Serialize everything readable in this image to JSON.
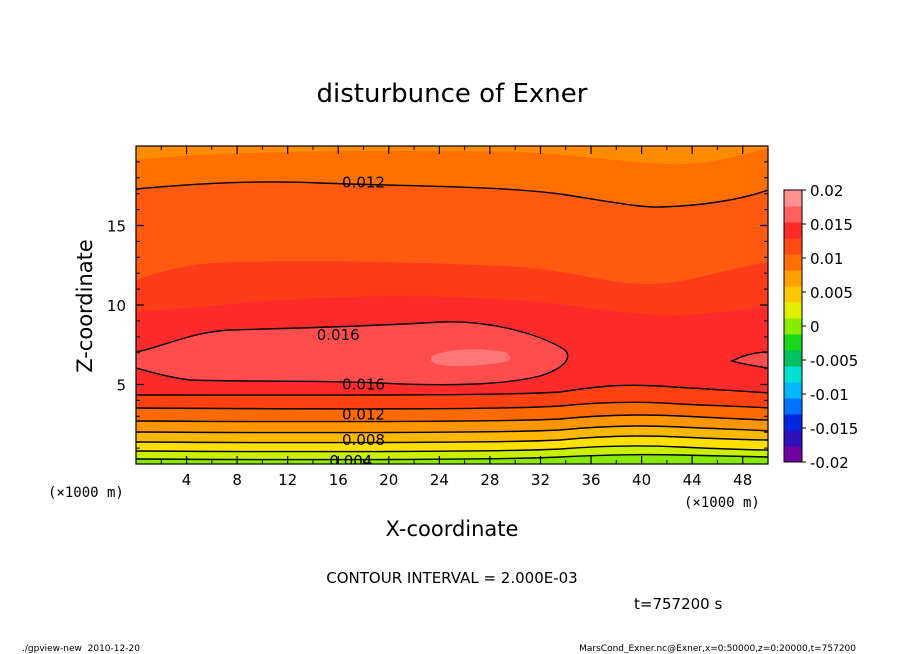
{
  "chart_data": {
    "type": "contour",
    "title": "disturbunce of Exner",
    "xlabel": "X-coordinate",
    "ylabel": "Z-coordinate",
    "x_unit": "(×1000 m)",
    "y_unit": "(×1000 m)",
    "xlim": [
      0,
      50
    ],
    "ylim": [
      0,
      20
    ],
    "x_ticks": [
      4,
      8,
      12,
      16,
      20,
      24,
      28,
      32,
      36,
      40,
      44,
      48
    ],
    "y_ticks": [
      5,
      10,
      15
    ],
    "contour_interval_text": "CONTOUR INTERVAL = 2.000E-03",
    "contour_labels": [
      {
        "text": "0.012",
        "x": 18,
        "z": 17.7
      },
      {
        "text": "0.016",
        "x": 16,
        "z": 8.1
      },
      {
        "text": "0.016",
        "x": 18,
        "z": 5.0
      },
      {
        "text": "0.012",
        "x": 18,
        "z": 3.1
      },
      {
        "text": "0.008",
        "x": 18,
        "z": 1.5
      },
      {
        "text": "0.004",
        "x": 17,
        "z": 0.2
      }
    ],
    "colorbar": {
      "labels": [
        "0.02",
        "0.015",
        "0.01",
        "0.005",
        "0",
        "-0.005",
        "-0.01",
        "-0.015",
        "-0.02"
      ],
      "colors_bottom_to_top": [
        "#7000a0",
        "#3010b8",
        "#0028e0",
        "#0070ff",
        "#00b8ff",
        "#00e0d0",
        "#00c060",
        "#18d818",
        "#88ec00",
        "#e0f000",
        "#ffc800",
        "#ffa000",
        "#ff7000",
        "#ff4a10",
        "#ff2a2a",
        "#ff6060",
        "#ff9090"
      ]
    }
  },
  "timestamp": "t=757200 s",
  "footer": {
    "left": "./gpview-new  2010-12-20",
    "right": "MarsCond_Exner.nc@Exner,x=0:50000,z=0:20000,t=757200"
  }
}
